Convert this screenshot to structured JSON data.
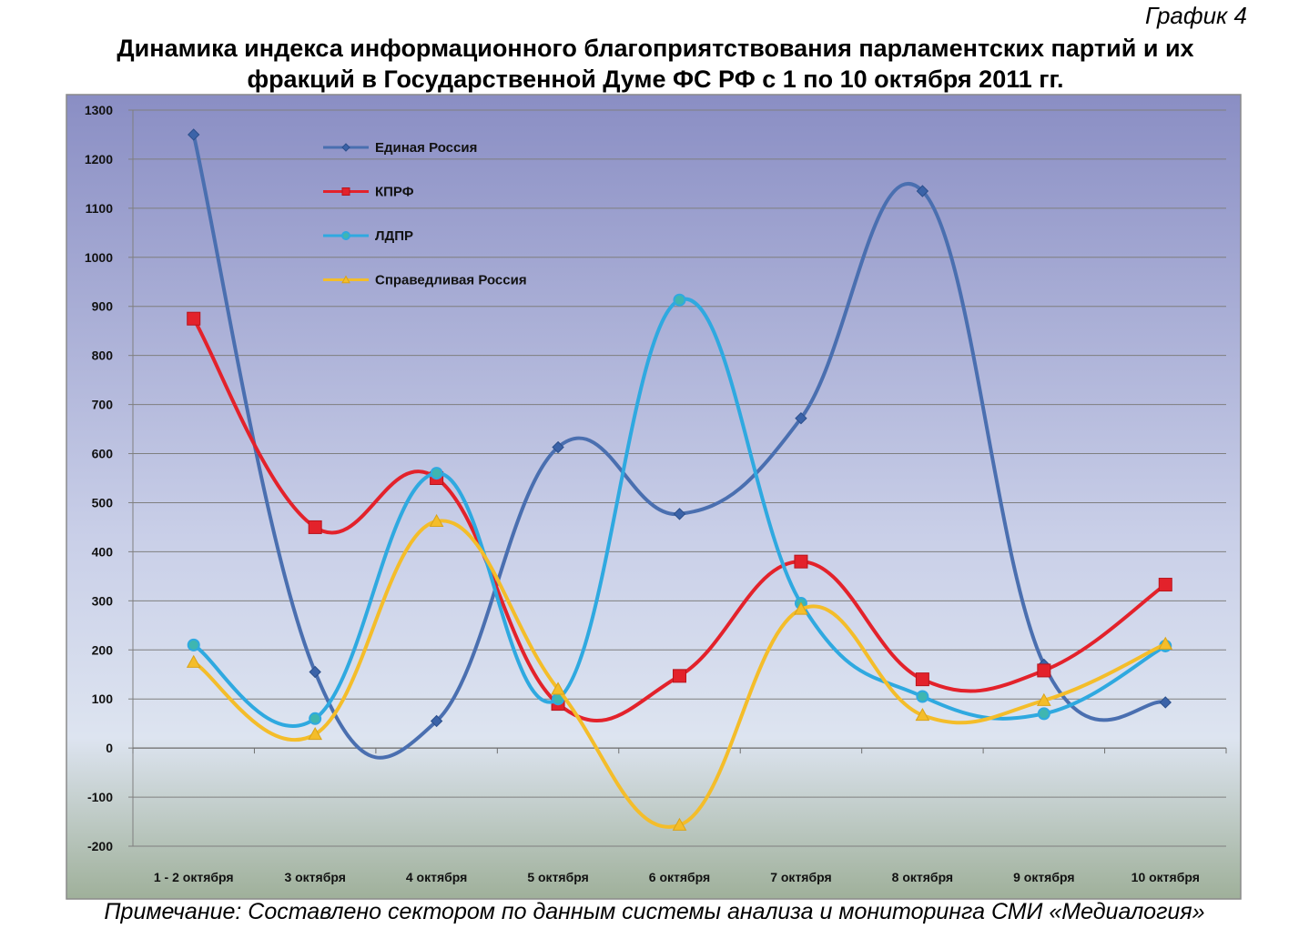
{
  "header": {
    "graph_label": "График 4",
    "title_line1": "Динамика индекса информационного благоприятствования парламентских партий и их",
    "title_line2": "фракций в Государственной Думе ФС РФ с 1 по 10 октября 2011 гг."
  },
  "note": "Примечание: Составлено сектором по данным системы анализа и мониторинга СМИ «Медиалогия»",
  "chart_data": {
    "type": "line",
    "title": "Динамика индекса информационного благоприятствования парламентских партий и их фракций в Государственной Думе ФС РФ с 1 по 10 октября 2011 гг.",
    "xlabel": "",
    "ylabel": "",
    "ylim": [
      -200,
      1300
    ],
    "yticks": [
      -200,
      -100,
      0,
      100,
      200,
      300,
      400,
      500,
      600,
      700,
      800,
      900,
      1000,
      1100,
      1200,
      1300
    ],
    "grid": true,
    "legend_position": "top-left",
    "categories": [
      "1 - 2 октября",
      "3 октября",
      "4 октября",
      "5 октября",
      "6 октября",
      "7 октября",
      "8 октября",
      "9 октября",
      "10 октября"
    ],
    "series": [
      {
        "name": "Единая Россия",
        "color": "#4a6fb0",
        "marker": "diamond",
        "values": [
          1250,
          155,
          55,
          613,
          477,
          672,
          1135,
          170,
          93
        ]
      },
      {
        "name": "КПРФ",
        "color": "#e3222b",
        "marker": "square",
        "values": [
          875,
          450,
          550,
          90,
          147,
          380,
          140,
          158,
          333
        ]
      },
      {
        "name": "ЛДПР",
        "color": "#2fa9e0",
        "marker": "circle",
        "values": [
          210,
          60,
          560,
          100,
          913,
          295,
          105,
          70,
          208
        ]
      },
      {
        "name": "Справедливая Россия",
        "color": "#f4bd2a",
        "marker": "triangle",
        "values": [
          175,
          28,
          462,
          120,
          -157,
          283,
          67,
          97,
          212
        ]
      }
    ]
  }
}
